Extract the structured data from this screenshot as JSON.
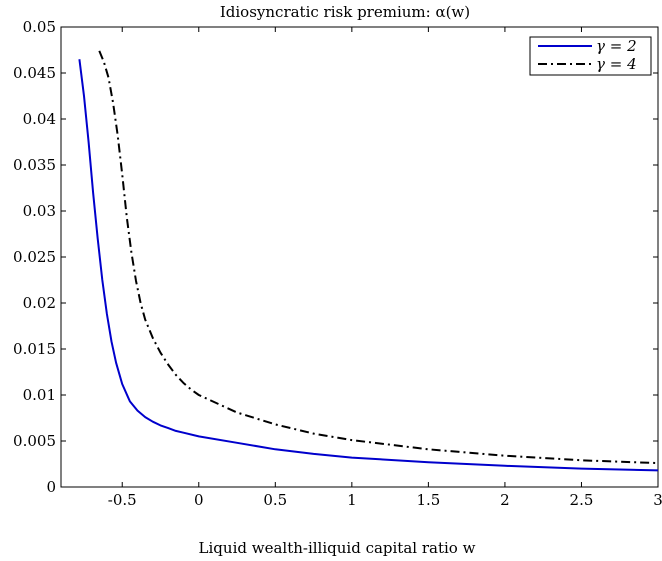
{
  "chart_data": {
    "type": "line",
    "title": "Idiosyncratic risk premium: α(w)",
    "xlabel": "Liquid wealth-illiquid capital ratio w",
    "ylabel": "",
    "xlim": [
      -0.9,
      3
    ],
    "ylim": [
      0,
      0.05
    ],
    "xticks": [
      -0.5,
      0,
      0.5,
      1,
      1.5,
      2,
      2.5,
      3
    ],
    "xtick_labels": [
      "-0.5",
      "0",
      "0.5",
      "1",
      "1.5",
      "2",
      "2.5",
      "3"
    ],
    "yticks": [
      0,
      0.005,
      0.01,
      0.015,
      0.02,
      0.025,
      0.03,
      0.035,
      0.04,
      0.045,
      0.05
    ],
    "ytick_labels": [
      "0",
      "0.005",
      "0.01",
      "0.015",
      "0.02",
      "0.025",
      "0.03",
      "0.035",
      "0.04",
      "0.045",
      "0.05"
    ],
    "grid": false,
    "legend_position": "top-right",
    "series": [
      {
        "name": "γ = 2",
        "color": "#0000cc",
        "dash": "solid",
        "x": [
          -0.78,
          -0.75,
          -0.72,
          -0.69,
          -0.66,
          -0.63,
          -0.6,
          -0.57,
          -0.54,
          -0.5,
          -0.45,
          -0.4,
          -0.35,
          -0.3,
          -0.25,
          -0.2,
          -0.15,
          -0.1,
          0.0,
          0.25,
          0.5,
          0.75,
          1.0,
          1.5,
          2.0,
          2.5,
          3.0
        ],
        "values": [
          0.0465,
          0.0425,
          0.0375,
          0.032,
          0.027,
          0.0225,
          0.0188,
          0.0158,
          0.0135,
          0.0112,
          0.0093,
          0.0083,
          0.0076,
          0.0071,
          0.0067,
          0.0064,
          0.0061,
          0.0059,
          0.0055,
          0.0048,
          0.0041,
          0.0036,
          0.0032,
          0.0027,
          0.0023,
          0.002,
          0.0018
        ]
      },
      {
        "name": "γ = 4",
        "color": "#000000",
        "dash": "dashdot",
        "x": [
          -0.65,
          -0.62,
          -0.59,
          -0.56,
          -0.53,
          -0.5,
          -0.47,
          -0.44,
          -0.41,
          -0.38,
          -0.35,
          -0.3,
          -0.25,
          -0.2,
          -0.15,
          -0.1,
          -0.05,
          0.0,
          0.25,
          0.5,
          0.75,
          1.0,
          1.5,
          2.0,
          2.5,
          3.0
        ],
        "values": [
          0.0474,
          0.0462,
          0.0445,
          0.0418,
          0.0383,
          0.034,
          0.0293,
          0.0255,
          0.0224,
          0.02,
          0.0182,
          0.0162,
          0.0146,
          0.0133,
          0.0122,
          0.0113,
          0.0106,
          0.01,
          0.0081,
          0.0068,
          0.0058,
          0.0051,
          0.0041,
          0.0034,
          0.0029,
          0.0026
        ]
      }
    ]
  }
}
